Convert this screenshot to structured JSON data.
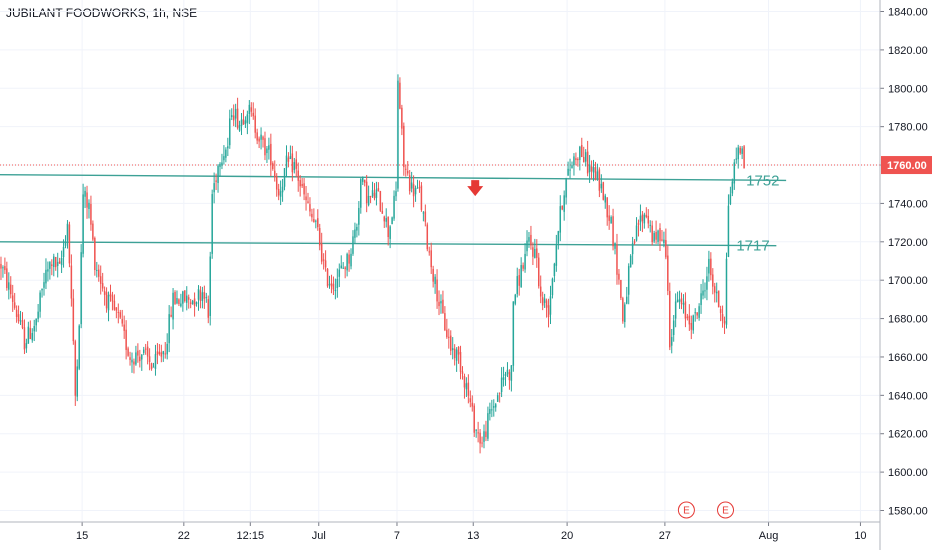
{
  "header": {
    "title": "JUBILANT FOODWORKS, 1h, NSE"
  },
  "chart_data": {
    "type": "candlestick",
    "y_ticks": [
      1580,
      1600,
      1620,
      1640,
      1660,
      1680,
      1700,
      1720,
      1740,
      1760,
      1780,
      1800,
      1820,
      1840
    ],
    "y_tick_labels": [
      "1580.00",
      "1600.00",
      "1620.00",
      "1640.00",
      "1660.00",
      "1680.00",
      "1700.00",
      "1720.00",
      "1740.00",
      "1760.00",
      "1780.00",
      "1800.00",
      "1820.00",
      "1840.00"
    ],
    "ylim": [
      1574,
      1846
    ],
    "x_labels": [
      "15",
      "22",
      "12:15",
      "Jul",
      "7",
      "13",
      "20",
      "27",
      "Aug",
      "10"
    ],
    "x_label_index": [
      42,
      94,
      128,
      163,
      203,
      242,
      290,
      340,
      393,
      440
    ],
    "n_slots": 450,
    "current_price": 1760,
    "current_price_label": "1760.00",
    "price_colors": {
      "up": "#26a69a",
      "down": "#ef5350"
    },
    "levels": [
      {
        "label": "1752",
        "value": 1752,
        "start_value": 1755,
        "start_index": 0,
        "end_index": 402
      },
      {
        "label": "1717",
        "value": 1718,
        "start_value": 1720,
        "start_index": 0,
        "end_index": 397
      }
    ],
    "signal_arrow": {
      "index": 243,
      "value": 1748,
      "direction": "down",
      "color": "#e53935"
    },
    "earnings_markers": [
      {
        "label": "E",
        "index": 351
      },
      {
        "label": "E",
        "index": 371
      }
    ],
    "path": [
      [
        0,
        1708
      ],
      [
        6,
        1690
      ],
      [
        12,
        1668
      ],
      [
        18,
        1678
      ],
      [
        22,
        1700
      ],
      [
        26,
        1710
      ],
      [
        30,
        1705
      ],
      [
        34,
        1730
      ],
      [
        36,
        1690
      ],
      [
        38,
        1640
      ],
      [
        40,
        1680
      ],
      [
        42,
        1745
      ],
      [
        45,
        1738
      ],
      [
        48,
        1710
      ],
      [
        54,
        1690
      ],
      [
        60,
        1680
      ],
      [
        66,
        1660
      ],
      [
        72,
        1662
      ],
      [
        78,
        1655
      ],
      [
        84,
        1665
      ],
      [
        88,
        1690
      ],
      [
        92,
        1690
      ],
      [
        98,
        1690
      ],
      [
        104,
        1695
      ],
      [
        106,
        1680
      ],
      [
        108,
        1745
      ],
      [
        112,
        1765
      ],
      [
        116,
        1770
      ],
      [
        118,
        1790
      ],
      [
        122,
        1782
      ],
      [
        126,
        1790
      ],
      [
        130,
        1780
      ],
      [
        134,
        1770
      ],
      [
        138,
        1765
      ],
      [
        142,
        1745
      ],
      [
        146,
        1760
      ],
      [
        150,
        1760
      ],
      [
        156,
        1740
      ],
      [
        162,
        1725
      ],
      [
        166,
        1702
      ],
      [
        170,
        1698
      ],
      [
        174,
        1705
      ],
      [
        178,
        1712
      ],
      [
        182,
        1730
      ],
      [
        184,
        1752
      ],
      [
        188,
        1742
      ],
      [
        192,
        1745
      ],
      [
        196,
        1735
      ],
      [
        198,
        1725
      ],
      [
        202,
        1745
      ],
      [
        203,
        1805
      ],
      [
        206,
        1760
      ],
      [
        210,
        1748
      ],
      [
        214,
        1745
      ],
      [
        218,
        1720
      ],
      [
        222,
        1698
      ],
      [
        226,
        1680
      ],
      [
        230,
        1665
      ],
      [
        234,
        1660
      ],
      [
        238,
        1645
      ],
      [
        242,
        1625
      ],
      [
        246,
        1615
      ],
      [
        250,
        1630
      ],
      [
        254,
        1640
      ],
      [
        258,
        1652
      ],
      [
        261,
        1652
      ],
      [
        262,
        1690
      ],
      [
        266,
        1705
      ],
      [
        270,
        1720
      ],
      [
        274,
        1712
      ],
      [
        276,
        1690
      ],
      [
        280,
        1685
      ],
      [
        284,
        1720
      ],
      [
        288,
        1748
      ],
      [
        292,
        1762
      ],
      [
        296,
        1768
      ],
      [
        300,
        1760
      ],
      [
        304,
        1755
      ],
      [
        308,
        1745
      ],
      [
        312,
        1730
      ],
      [
        316,
        1700
      ],
      [
        318,
        1680
      ],
      [
        322,
        1710
      ],
      [
        326,
        1730
      ],
      [
        330,
        1735
      ],
      [
        334,
        1720
      ],
      [
        338,
        1725
      ],
      [
        340,
        1715
      ],
      [
        342,
        1670
      ],
      [
        346,
        1690
      ],
      [
        350,
        1682
      ],
      [
        354,
        1678
      ],
      [
        358,
        1690
      ],
      [
        362,
        1708
      ],
      [
        366,
        1690
      ],
      [
        370,
        1680
      ],
      [
        372,
        1740
      ],
      [
        376,
        1765
      ],
      [
        378,
        1770
      ],
      [
        380,
        1760
      ]
    ]
  }
}
